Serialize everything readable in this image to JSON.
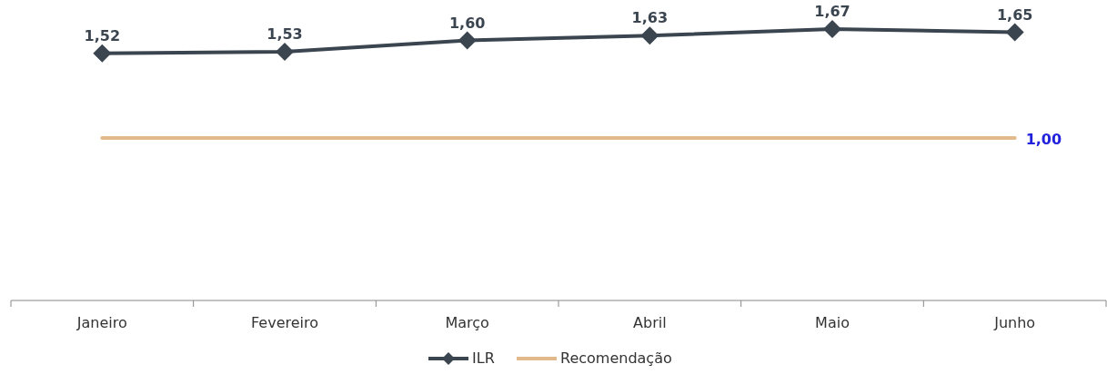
{
  "chart_data": {
    "type": "line",
    "categories": [
      "Janeiro",
      "Fevereiro",
      "Março",
      "Abril",
      "Maio",
      "Junho"
    ],
    "series": [
      {
        "name": "ILR",
        "color": "#3b4550",
        "marker": "diamond",
        "values": [
          1.52,
          1.53,
          1.6,
          1.63,
          1.67,
          1.65
        ],
        "value_labels": [
          "1,52",
          "1,53",
          "1,60",
          "1,63",
          "1,67",
          "1,65"
        ]
      },
      {
        "name": "Recomendação",
        "color": "#e2b98a",
        "marker": "none",
        "values": [
          1,
          1,
          1,
          1,
          1,
          1
        ],
        "value_labels": [
          null,
          null,
          null,
          null,
          null,
          "1,00"
        ]
      }
    ],
    "legend": "bottom"
  }
}
